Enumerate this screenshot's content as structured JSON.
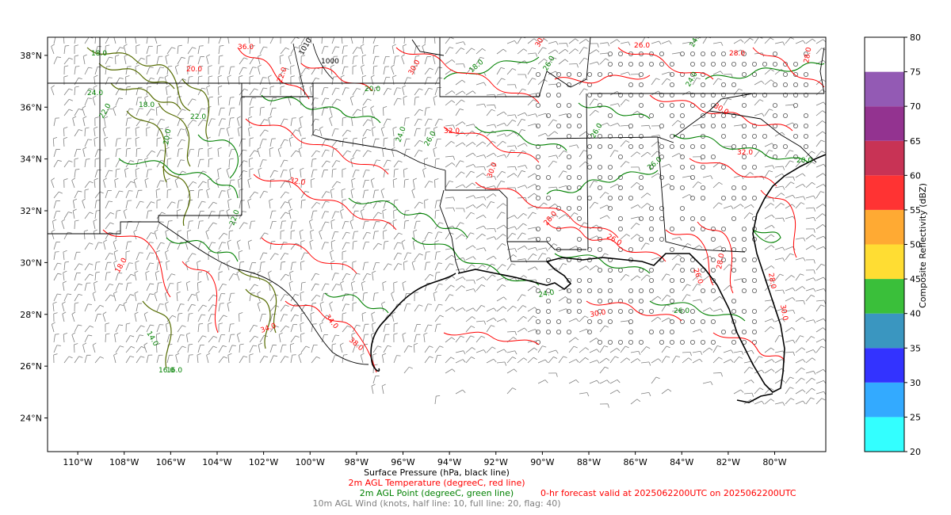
{
  "map": {
    "lon_ticks": [
      "110°W",
      "108°W",
      "106°W",
      "104°W",
      "102°W",
      "100°W",
      "98°W",
      "96°W",
      "94°W",
      "92°W",
      "90°W",
      "88°W",
      "86°W",
      "84°W",
      "82°W",
      "80°W"
    ],
    "lat_ticks": [
      "38°N",
      "36°N",
      "34°N",
      "32°N",
      "30°N",
      "28°N",
      "26°N",
      "24°N"
    ],
    "lon_range": [
      -111.3,
      -77.8
    ],
    "lat_range": [
      22.7,
      38.7
    ],
    "background": "#ffffff"
  },
  "colorbar": {
    "label": "Composite Reflectivity (dBZ)",
    "ticks": [
      "20",
      "25",
      "30",
      "35",
      "40",
      "45",
      "50",
      "55",
      "60",
      "65",
      "70",
      "75",
      "80"
    ],
    "range": [
      20,
      80
    ],
    "colors": [
      "#33ffff",
      "#33aaff",
      "#3333ff",
      "#3a96c0",
      "#3abf3a",
      "#ffdd33",
      "#ffaa33",
      "#ff3333",
      "#c83355",
      "#933390",
      "#935ab4",
      "#ffffff"
    ]
  },
  "captions": {
    "pressure": "Surface Pressure (hPa, black line)",
    "temperature": "2m AGL Temperature (degreeC, red line)",
    "dewpoint": "2m AGL Point (degreeC, green line)",
    "wind": "10m AGL Wind (knots, half line: 10, full line: 20, flag: 40)",
    "valid": "0-hr forecast valid at 2025062200UTC on 2025062200UTC"
  },
  "colors": {
    "temperature": "#ff0000",
    "dewpoint": "#008000",
    "pressure": "#000000",
    "wind": "#808080"
  },
  "contour_labels": {
    "temperature": [
      "30.0",
      "32.0",
      "34.0",
      "36.0",
      "38.0",
      "28.0",
      "26.0",
      "22.0",
      "20.0",
      "18.0",
      "32.0",
      "30.0",
      "28.0",
      "30.0",
      "34.0",
      "26.0",
      "28.0",
      "30.0",
      "32.0",
      "30.0",
      "28.0",
      "30.0",
      "26.0",
      "28.0"
    ],
    "dewpoint": [
      "26.0",
      "24.0",
      "22.0",
      "20.0",
      "18.0",
      "16.0",
      "14.0",
      "24.0",
      "26.0",
      "20.0",
      "22.0",
      "24.0",
      "18.0",
      "26.0",
      "24.0",
      "26.0",
      "20.0",
      "22.0",
      "26.0",
      "24.0",
      "18.0",
      "16.0"
    ],
    "pressure": [
      "1010",
      "1000"
    ]
  }
}
